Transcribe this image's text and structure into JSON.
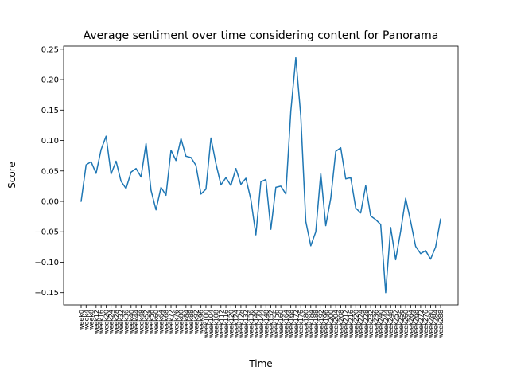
{
  "chart_data": {
    "type": "line",
    "title": "Average sentiment over time considering content for Panorama",
    "xlabel": "Time",
    "ylabel": "Score",
    "ylim": [
      -0.17,
      0.255
    ],
    "yticks": [
      -0.15,
      -0.1,
      -0.05,
      0.0,
      0.05,
      0.1,
      0.15,
      0.2,
      0.25
    ],
    "ytick_labels": [
      "−0.15",
      "−0.10",
      "−0.05",
      "0.00",
      "0.05",
      "0.10",
      "0.15",
      "0.20",
      "0.25"
    ],
    "grid": false,
    "line_color": "#1f77b4",
    "x": [
      "week0",
      "week4",
      "week8",
      "week12",
      "week16",
      "week20",
      "week24",
      "week28",
      "week32",
      "week36",
      "week40",
      "week44",
      "week48",
      "week52",
      "week56",
      "week60",
      "week64",
      "week68",
      "week72",
      "week76",
      "week80",
      "week84",
      "week88",
      "week92",
      "week96",
      "week100",
      "week104",
      "week108",
      "week112",
      "week116",
      "week120",
      "week124",
      "week128",
      "week132",
      "week136",
      "week140",
      "week144",
      "week148",
      "week152",
      "week156",
      "week160",
      "week164",
      "week168",
      "week172",
      "week176",
      "week180",
      "week184",
      "week188",
      "week192",
      "week196",
      "week200",
      "week204",
      "week208",
      "week212",
      "week216",
      "week220",
      "week224",
      "week228",
      "week232",
      "week236",
      "week240",
      "week244",
      "week248",
      "week252",
      "week256",
      "week260",
      "week264",
      "week268",
      "week272",
      "week276",
      "week280",
      "week284",
      "week288"
    ],
    "series": [
      {
        "values": [
          0.0,
          0.06,
          0.065,
          0.046,
          0.085,
          0.107,
          0.045,
          0.066,
          0.033,
          0.021,
          0.048,
          0.054,
          0.04,
          0.095,
          0.018,
          -0.014,
          0.023,
          0.01,
          0.084,
          0.067,
          0.103,
          0.074,
          0.072,
          0.059,
          0.012,
          0.02,
          0.104,
          0.062,
          0.027,
          0.039,
          0.026,
          0.054,
          0.028,
          0.038,
          0.003,
          -0.055,
          0.032,
          0.036,
          -0.046,
          0.023,
          0.025,
          0.012,
          0.148,
          0.236,
          0.14,
          -0.033,
          -0.073,
          -0.05,
          0.046,
          -0.04,
          0.005,
          0.082,
          0.088,
          0.037,
          0.039,
          -0.011,
          -0.019,
          0.026,
          -0.024,
          -0.03,
          -0.038,
          -0.15,
          -0.043,
          -0.096,
          -0.049,
          0.005,
          -0.033,
          -0.074,
          -0.086,
          -0.081,
          -0.095,
          -0.075,
          -0.029
        ]
      }
    ]
  }
}
